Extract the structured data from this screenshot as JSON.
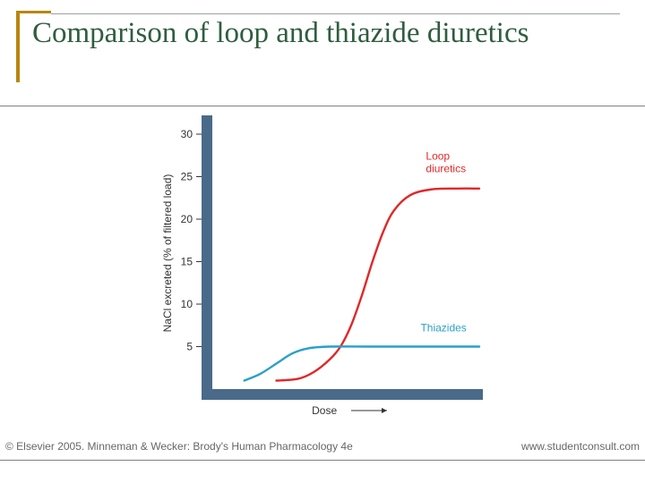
{
  "title": "Comparison of loop and thiazide diuretics",
  "chart": {
    "type": "line",
    "background_color": "#ffffff",
    "frame_color": "#4a6a8a",
    "frame_width": 12,
    "tick_color": "#333333",
    "tick_fontsize": 12,
    "label_fontsize": 12,
    "label_color": "#333333",
    "ylabel": "NaCl excreted (% of filtered load)",
    "xlabel": "Dose",
    "ylim": [
      0,
      32
    ],
    "yticks": [
      5,
      10,
      15,
      20,
      25,
      30
    ],
    "series": [
      {
        "name": "Loop diuretics",
        "label": "Loop\ndiuretics",
        "color": "#e02828",
        "line_width": 2.4,
        "points": [
          {
            "x": 0.24,
            "y": 1.0
          },
          {
            "x": 0.32,
            "y": 1.2
          },
          {
            "x": 0.38,
            "y": 2.0
          },
          {
            "x": 0.44,
            "y": 3.5
          },
          {
            "x": 0.48,
            "y": 5.0
          },
          {
            "x": 0.52,
            "y": 7.5
          },
          {
            "x": 0.56,
            "y": 11.0
          },
          {
            "x": 0.6,
            "y": 15.0
          },
          {
            "x": 0.64,
            "y": 18.5
          },
          {
            "x": 0.68,
            "y": 21.0
          },
          {
            "x": 0.74,
            "y": 22.8
          },
          {
            "x": 0.82,
            "y": 23.5
          },
          {
            "x": 0.92,
            "y": 23.6
          },
          {
            "x": 1.0,
            "y": 23.6
          }
        ],
        "label_pos": {
          "x": 0.8,
          "y": 27.0
        }
      },
      {
        "name": "Thiazides",
        "label": "Thiazides",
        "color": "#2aa0c8",
        "line_width": 2.4,
        "points": [
          {
            "x": 0.12,
            "y": 1.0
          },
          {
            "x": 0.18,
            "y": 1.8
          },
          {
            "x": 0.24,
            "y": 3.0
          },
          {
            "x": 0.3,
            "y": 4.2
          },
          {
            "x": 0.36,
            "y": 4.8
          },
          {
            "x": 0.44,
            "y": 5.0
          },
          {
            "x": 0.6,
            "y": 5.0
          },
          {
            "x": 0.8,
            "y": 5.0
          },
          {
            "x": 1.0,
            "y": 5.0
          }
        ],
        "label_pos": {
          "x": 0.78,
          "y": 6.8
        }
      }
    ]
  },
  "credits": {
    "left": "© Elsevier 2005. Minneman & Wecker: Brody's Human Pharmacology 4e",
    "right": "www.studentconsult.com"
  }
}
